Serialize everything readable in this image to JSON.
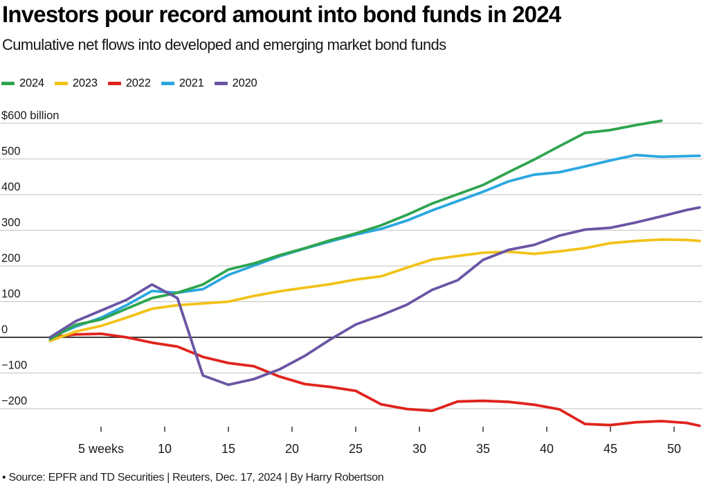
{
  "header": {
    "title": "Investors pour record amount into bond funds in 2024",
    "subtitle": "Cumulative net flows into developed and emerging market bond funds"
  },
  "legend": {
    "items": [
      {
        "label": "2024",
        "color": "#2ea44f"
      },
      {
        "label": "2023",
        "color": "#f2c218"
      },
      {
        "label": "2022",
        "color": "#e0231d"
      },
      {
        "label": "2021",
        "color": "#2aa7e0"
      },
      {
        "label": "2020",
        "color": "#6a55a4"
      }
    ]
  },
  "footer": {
    "source": "• Source: EPFR and TD Securities | Reuters, Dec. 17, 2024 | By Harry Robertson"
  },
  "colors": {
    "gridline": "#cccccc",
    "zero_line": "#3d3d3d",
    "axis_text": "#1a1a1a",
    "tick_mark": "#3d3d3d"
  },
  "chart_data": {
    "type": "line",
    "title": "Investors pour record amount into bond funds in 2024",
    "subtitle": "Cumulative net flows into developed and emerging market bond funds",
    "xlabel": "weeks",
    "ylabel": "$ billion",
    "ylim": [
      -270,
      640
    ],
    "xlim": [
      1,
      52
    ],
    "grid": "horizontal",
    "legend_position": "top-left",
    "y_unit_label": "$600 billion",
    "x": [
      1,
      3,
      5,
      7,
      9,
      11,
      13,
      15,
      17,
      19,
      21,
      23,
      25,
      27,
      29,
      31,
      33,
      35,
      37,
      39,
      41,
      43,
      45,
      47,
      49,
      51,
      52
    ],
    "series": [
      {
        "name": "2024",
        "color": "#2ea44f",
        "values": [
          -5,
          35,
          50,
          80,
          110,
          125,
          148,
          190,
          207,
          230,
          250,
          272,
          291,
          314,
          343,
          375,
          401,
          427,
          463,
          498,
          536,
          573,
          581,
          595,
          607,
          null,
          null
        ]
      },
      {
        "name": "2023",
        "color": "#f2c218",
        "values": [
          -10,
          16,
          32,
          55,
          80,
          90,
          95,
          100,
          116,
          129,
          139,
          149,
          162,
          171,
          195,
          218,
          228,
          237,
          240,
          234,
          241,
          250,
          264,
          270,
          274,
          273,
          270
        ]
      },
      {
        "name": "2022",
        "color": "#e0231d",
        "values": [
          0,
          8,
          10,
          0,
          -15,
          -26,
          -55,
          -72,
          -81,
          -110,
          -131,
          -139,
          -150,
          -188,
          -201,
          -206,
          -180,
          -178,
          -181,
          -189,
          -202,
          -243,
          -246,
          -238,
          -235,
          -240,
          -248
        ]
      },
      {
        "name": "2021",
        "color": "#2aa7e0",
        "values": [
          0,
          30,
          55,
          90,
          130,
          125,
          135,
          175,
          201,
          227,
          249,
          269,
          288,
          304,
          327,
          356,
          382,
          408,
          437,
          456,
          463,
          479,
          496,
          511,
          506,
          508,
          509
        ]
      },
      {
        "name": "2020",
        "color": "#6a55a4",
        "values": [
          0,
          45,
          75,
          105,
          148,
          110,
          -107,
          -133,
          -117,
          -90,
          -52,
          -6,
          36,
          62,
          91,
          133,
          160,
          217,
          245,
          259,
          285,
          302,
          307,
          322,
          339,
          357,
          364
        ]
      }
    ],
    "yticks": [
      {
        "value": 600,
        "label": "$600 billion"
      },
      {
        "value": 500,
        "label": "500"
      },
      {
        "value": 400,
        "label": "400"
      },
      {
        "value": 300,
        "label": "300"
      },
      {
        "value": 200,
        "label": "200"
      },
      {
        "value": 100,
        "label": "100"
      },
      {
        "value": 0,
        "label": "0"
      },
      {
        "value": -100,
        "label": "−100"
      },
      {
        "value": -200,
        "label": "−200"
      }
    ],
    "xticks": [
      {
        "week": 5,
        "label": "5 weeks"
      },
      {
        "week": 10,
        "label": "10"
      },
      {
        "week": 15,
        "label": "15"
      },
      {
        "week": 20,
        "label": "20"
      },
      {
        "week": 25,
        "label": "25"
      },
      {
        "week": 30,
        "label": "30"
      },
      {
        "week": 35,
        "label": "35"
      },
      {
        "week": 40,
        "label": "40"
      },
      {
        "week": 45,
        "label": "45"
      },
      {
        "week": 50,
        "label": "50"
      }
    ]
  }
}
